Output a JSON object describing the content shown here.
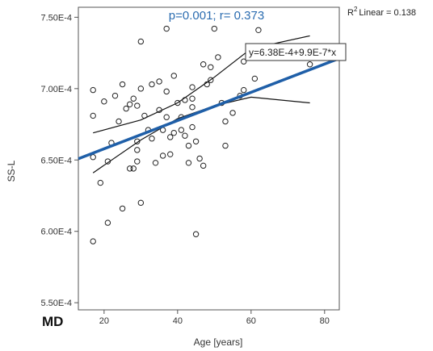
{
  "chart_data": {
    "type": "scatter",
    "panel_label": "MD",
    "stat_annotation": "p=0.001; r=  0.373",
    "r2_label": "Linear = 0.138",
    "r2_prefix": "R",
    "r2_sup": "2",
    "equation": "y=6.38E-4+9.9E-7*x",
    "xlabel": "Age [years]",
    "ylabel": "SS-L",
    "xlim": [
      13,
      84
    ],
    "ylim": [
      0.000545,
      0.000757
    ],
    "xticks": [
      20,
      40,
      60,
      80
    ],
    "xtick_labels": [
      "20",
      "40",
      "60",
      "80"
    ],
    "yticks": [
      0.00055,
      0.0006,
      0.00065,
      0.0007,
      0.00075
    ],
    "ytick_labels": [
      "5.50E-4",
      "6.00E-4",
      "6.50E-4",
      "7.00E-4",
      "7.50E-4"
    ],
    "grid": false,
    "regression": {
      "intercept": 0.000638,
      "slope": 9.9e-07,
      "color": "#1f5fa8"
    },
    "ci_upper": [
      [
        17,
        0.000669
      ],
      [
        30,
        0.000678
      ],
      [
        40,
        0.00069
      ],
      [
        50,
        0.000708
      ],
      [
        60,
        0.000728
      ],
      [
        76,
        0.000737
      ]
    ],
    "ci_lower": [
      [
        17,
        0.000641
      ],
      [
        30,
        0.000664
      ],
      [
        40,
        0.000679
      ],
      [
        50,
        0.000688
      ],
      [
        60,
        0.000694
      ],
      [
        76,
        0.00069
      ]
    ],
    "points": [
      [
        17,
        0.000699
      ],
      [
        17,
        0.000681
      ],
      [
        17,
        0.000652
      ],
      [
        17,
        0.000593
      ],
      [
        19,
        0.000634
      ],
      [
        20,
        0.000691
      ],
      [
        21,
        0.000649
      ],
      [
        21,
        0.000606
      ],
      [
        22,
        0.000662
      ],
      [
        23,
        0.000695
      ],
      [
        24,
        0.000677
      ],
      [
        25,
        0.000703
      ],
      [
        25,
        0.000616
      ],
      [
        26,
        0.000686
      ],
      [
        27,
        0.000689
      ],
      [
        27,
        0.000644
      ],
      [
        28,
        0.000693
      ],
      [
        28,
        0.000644
      ],
      [
        29,
        0.000688
      ],
      [
        29,
        0.000663
      ],
      [
        29,
        0.000657
      ],
      [
        29,
        0.000649
      ],
      [
        30,
        0.000733
      ],
      [
        30,
        0.0007
      ],
      [
        30,
        0.00062
      ],
      [
        31,
        0.000681
      ],
      [
        32,
        0.000671
      ],
      [
        33,
        0.000703
      ],
      [
        33,
        0.000665
      ],
      [
        34,
        0.000648
      ],
      [
        35,
        0.000705
      ],
      [
        35,
        0.000685
      ],
      [
        36,
        0.000671
      ],
      [
        36,
        0.000653
      ],
      [
        37,
        0.000742
      ],
      [
        37,
        0.000698
      ],
      [
        37,
        0.00068
      ],
      [
        38,
        0.000666
      ],
      [
        38,
        0.000654
      ],
      [
        39,
        0.000669
      ],
      [
        39,
        0.000709
      ],
      [
        40,
        0.00069
      ],
      [
        41,
        0.00068
      ],
      [
        41,
        0.000671
      ],
      [
        42,
        0.000692
      ],
      [
        42,
        0.000667
      ],
      [
        43,
        0.00066
      ],
      [
        43,
        0.000648
      ],
      [
        44,
        0.000701
      ],
      [
        44,
        0.000693
      ],
      [
        44,
        0.000687
      ],
      [
        44,
        0.000673
      ],
      [
        45,
        0.000663
      ],
      [
        45,
        0.000598
      ],
      [
        46,
        0.000651
      ],
      [
        47,
        0.000717
      ],
      [
        47,
        0.000646
      ],
      [
        48,
        0.000703
      ],
      [
        49,
        0.000706
      ],
      [
        49,
        0.000715
      ],
      [
        50,
        0.000742
      ],
      [
        51,
        0.000722
      ],
      [
        52,
        0.00069
      ],
      [
        53,
        0.000677
      ],
      [
        53,
        0.00066
      ],
      [
        55,
        0.000683
      ],
      [
        57,
        0.000695
      ],
      [
        58,
        0.000699
      ],
      [
        58,
        0.000719
      ],
      [
        60,
        0.000722
      ],
      [
        61,
        0.000707
      ],
      [
        62,
        0.000741
      ],
      [
        76,
        0.000717
      ]
    ]
  }
}
